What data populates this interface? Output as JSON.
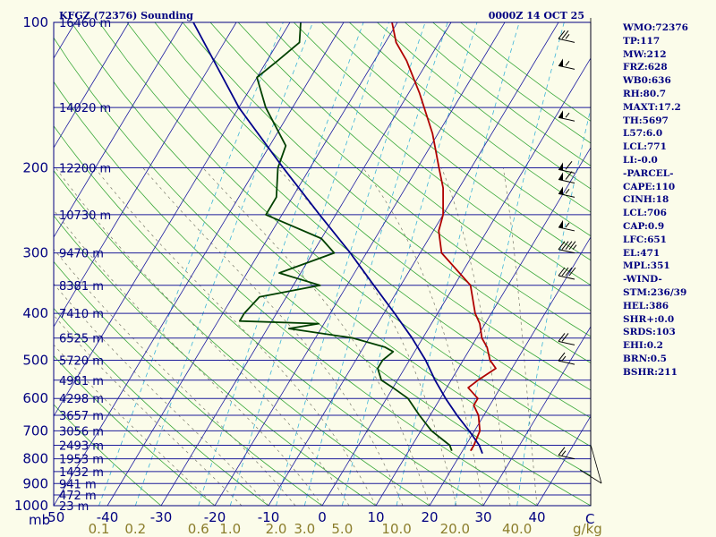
{
  "chart_data": {
    "type": "line",
    "title": "KFGZ (72376) Sounding",
    "datetime": "0000Z 14 OCT 25",
    "xlabel_left": "mb",
    "xlim": [
      -50,
      50
    ],
    "ylim": [
      1000,
      100
    ],
    "x_ticks": [
      -50,
      -40,
      -30,
      -20,
      -10,
      0,
      10,
      20,
      30,
      40
    ],
    "x_axis_end_label": "C",
    "mixing_ratio_ticks": [
      "0.1",
      "0.2",
      "0.6",
      "1.0",
      "2.0",
      "3.0",
      "5.0",
      "10.0",
      "20.0",
      "40.0"
    ],
    "mixing_ratio_unit": "g/kg",
    "pressure_levels": [
      100,
      200,
      300,
      400,
      500,
      600,
      700,
      800,
      900,
      1000
    ],
    "height_labels": [
      {
        "p": 100,
        "label": "16460 m"
      },
      {
        "p": 150,
        "label": "14020 m"
      },
      {
        "p": 200,
        "label": "12200 m"
      },
      {
        "p": 250,
        "label": "10730 m"
      },
      {
        "p": 300,
        "label": "9470 m"
      },
      {
        "p": 350,
        "label": "8381 m"
      },
      {
        "p": 400,
        "label": "7410 m"
      },
      {
        "p": 450,
        "label": "6525 m"
      },
      {
        "p": 500,
        "label": "5720 m"
      },
      {
        "p": 550,
        "label": "4981 m"
      },
      {
        "p": 600,
        "label": "4298 m"
      },
      {
        "p": 650,
        "label": "3657 m"
      },
      {
        "p": 700,
        "label": "3056 m"
      },
      {
        "p": 750,
        "label": "2493 m"
      },
      {
        "p": 800,
        "label": "1953 m"
      },
      {
        "p": 850,
        "label": "1432 m"
      },
      {
        "p": 900,
        "label": "941 m"
      },
      {
        "p": 950,
        "label": "472 m"
      },
      {
        "p": 1000,
        "label": "23 m"
      }
    ],
    "series": [
      {
        "name": "Temperature",
        "color": "#b00000",
        "points": [
          [
            770,
            21.5
          ],
          [
            750,
            21.5
          ],
          [
            700,
            21
          ],
          [
            650,
            19
          ],
          [
            620,
            17
          ],
          [
            600,
            17
          ],
          [
            570,
            14
          ],
          [
            550,
            15
          ],
          [
            520,
            17
          ],
          [
            500,
            15
          ],
          [
            470,
            13
          ],
          [
            450,
            11
          ],
          [
            420,
            9
          ],
          [
            400,
            7
          ],
          [
            350,
            3
          ],
          [
            300,
            -6
          ],
          [
            270,
            -9
          ],
          [
            250,
            -10
          ],
          [
            220,
            -13
          ],
          [
            200,
            -16
          ],
          [
            170,
            -21
          ],
          [
            140,
            -28
          ],
          [
            120,
            -34
          ],
          [
            110,
            -38
          ],
          [
            100,
            -41
          ]
        ]
      },
      {
        "name": "Dewpoint",
        "color": "#004000",
        "points": [
          [
            770,
            18
          ],
          [
            750,
            17
          ],
          [
            700,
            12
          ],
          [
            650,
            8
          ],
          [
            600,
            4
          ],
          [
            570,
            0
          ],
          [
            550,
            -3
          ],
          [
            520,
            -5
          ],
          [
            500,
            -5
          ],
          [
            480,
            -4
          ],
          [
            470,
            -6
          ],
          [
            450,
            -13
          ],
          [
            430,
            -26
          ],
          [
            420,
            -21
          ],
          [
            415,
            -36
          ],
          [
            400,
            -36
          ],
          [
            370,
            -35
          ],
          [
            350,
            -25
          ],
          [
            330,
            -34
          ],
          [
            300,
            -26
          ],
          [
            280,
            -30
          ],
          [
            250,
            -43
          ],
          [
            230,
            -43
          ],
          [
            200,
            -46
          ],
          [
            180,
            -47
          ],
          [
            150,
            -55
          ],
          [
            130,
            -60
          ],
          [
            120,
            -58
          ],
          [
            110,
            -56
          ],
          [
            100,
            -58
          ]
        ]
      },
      {
        "name": "Parcel",
        "color": "#00008b",
        "points": [
          [
            780,
            24
          ],
          [
            750,
            22.5
          ],
          [
            700,
            19
          ],
          [
            650,
            15
          ],
          [
            600,
            11
          ],
          [
            550,
            7
          ],
          [
            500,
            3
          ],
          [
            450,
            -2
          ],
          [
            400,
            -8
          ],
          [
            350,
            -15
          ],
          [
            300,
            -23
          ],
          [
            250,
            -33
          ],
          [
            200,
            -45
          ],
          [
            150,
            -60
          ],
          [
            100,
            -78
          ]
        ]
      }
    ],
    "wind_barbs": [
      {
        "p": 110,
        "spd": 25
      },
      {
        "p": 125,
        "spd": 55
      },
      {
        "p": 160,
        "spd": 55
      },
      {
        "p": 205,
        "spd": 60
      },
      {
        "p": 215,
        "spd": 60
      },
      {
        "p": 230,
        "spd": 55
      },
      {
        "p": 270,
        "spd": 55
      },
      {
        "p": 300,
        "spd": 45
      },
      {
        "p": 340,
        "spd": 40
      },
      {
        "p": 465,
        "spd": 20
      },
      {
        "p": 510,
        "spd": 15
      },
      {
        "p": 800,
        "spd": 15
      }
    ],
    "indices": [
      "WMO:72376",
      "TP:117",
      "MW:212",
      "FRZ:628",
      "WB0:636",
      "RH:80.7",
      "MAXT:17.2",
      "TH:5697",
      "L57:6.0",
      "LCL:771",
      "LI:-0.0",
      "-PARCEL-",
      "CAPE:110",
      "CINH:18",
      "LCL:706",
      "CAP:0.9",
      "LFC:651",
      "EL:471",
      "MPL:351",
      "-WIND-",
      "STM:236/39",
      "HEL:386",
      "SHR+:0.0",
      "SRDS:103",
      "EHI:0.2",
      "BRN:0.5",
      "BSHR:211"
    ]
  }
}
